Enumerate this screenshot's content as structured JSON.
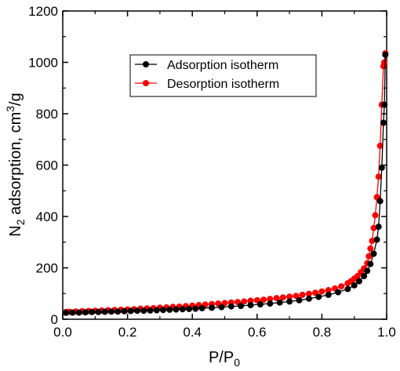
{
  "chart_data": {
    "type": "line",
    "xlabel": {
      "base": "P/P",
      "sub": "0"
    },
    "ylabel": {
      "pre": "N",
      "sub": "2",
      "mid": " adsorption, cm",
      "sup": "3",
      "post": "/g"
    },
    "xlim": [
      0.0,
      1.0
    ],
    "ylim": [
      0,
      1200
    ],
    "xticks": [
      0.0,
      0.2,
      0.4,
      0.6,
      0.8,
      1.0
    ],
    "xtick_labels": [
      "0.0",
      "0.2",
      "0.4",
      "0.6",
      "0.8",
      "1.0"
    ],
    "yticks": [
      0,
      200,
      400,
      600,
      800,
      1000,
      1200
    ],
    "ytick_labels": [
      "0",
      "200",
      "400",
      "600",
      "800",
      "1000",
      "1200"
    ],
    "grid": false,
    "legend_position": "top-right",
    "series": [
      {
        "name": "Adsorption isotherm",
        "color": "#000000",
        "x": [
          0.01,
          0.03,
          0.05,
          0.07,
          0.09,
          0.11,
          0.13,
          0.15,
          0.17,
          0.19,
          0.21,
          0.23,
          0.25,
          0.27,
          0.29,
          0.31,
          0.33,
          0.35,
          0.37,
          0.39,
          0.41,
          0.43,
          0.46,
          0.49,
          0.52,
          0.55,
          0.58,
          0.61,
          0.64,
          0.67,
          0.7,
          0.73,
          0.76,
          0.79,
          0.82,
          0.85,
          0.88,
          0.9,
          0.915,
          0.93,
          0.94,
          0.95,
          0.96,
          0.97,
          0.975,
          0.98,
          0.985,
          0.99,
          0.993,
          0.996
        ],
        "y": [
          25,
          26,
          26,
          27,
          28,
          28,
          29,
          30,
          30,
          31,
          32,
          33,
          33,
          34,
          35,
          36,
          37,
          38,
          39,
          40,
          41,
          43,
          45,
          47,
          50,
          52,
          55,
          58,
          61,
          65,
          69,
          74,
          80,
          87,
          95,
          105,
          118,
          132,
          148,
          168,
          188,
          215,
          255,
          310,
          360,
          460,
          590,
          765,
          835,
          1030
        ]
      },
      {
        "name": "Desorption isotherm",
        "color": "#ff0000",
        "x": [
          0.996,
          0.993,
          0.99,
          0.985,
          0.98,
          0.975,
          0.97,
          0.965,
          0.96,
          0.955,
          0.95,
          0.945,
          0.94,
          0.93,
          0.92,
          0.91,
          0.9,
          0.89,
          0.88,
          0.86,
          0.84,
          0.82,
          0.8,
          0.78,
          0.76,
          0.74,
          0.72,
          0.7,
          0.68,
          0.66,
          0.64,
          0.62,
          0.6,
          0.58,
          0.56,
          0.54,
          0.52,
          0.5,
          0.48,
          0.46,
          0.44,
          0.42,
          0.4,
          0.38,
          0.36,
          0.34,
          0.32,
          0.3,
          0.28,
          0.26,
          0.24,
          0.22,
          0.2,
          0.18,
          0.16,
          0.14,
          0.12,
          0.1,
          0.08,
          0.06,
          0.04,
          0.02,
          0.01
        ],
        "y": [
          1035,
          1000,
          985,
          835,
          675,
          555,
          475,
          405,
          355,
          305,
          275,
          245,
          218,
          198,
          183,
          168,
          158,
          148,
          140,
          128,
          120,
          113,
          108,
          103,
          99,
          95,
          91,
          88,
          85,
          82,
          79,
          76,
          74,
          72,
          69,
          67,
          65,
          63,
          61,
          59,
          57,
          55,
          53,
          51,
          49,
          48,
          46,
          45,
          43,
          42,
          41,
          39,
          38,
          37,
          36,
          35,
          34,
          33,
          32,
          31,
          30,
          29,
          28
        ]
      }
    ]
  }
}
